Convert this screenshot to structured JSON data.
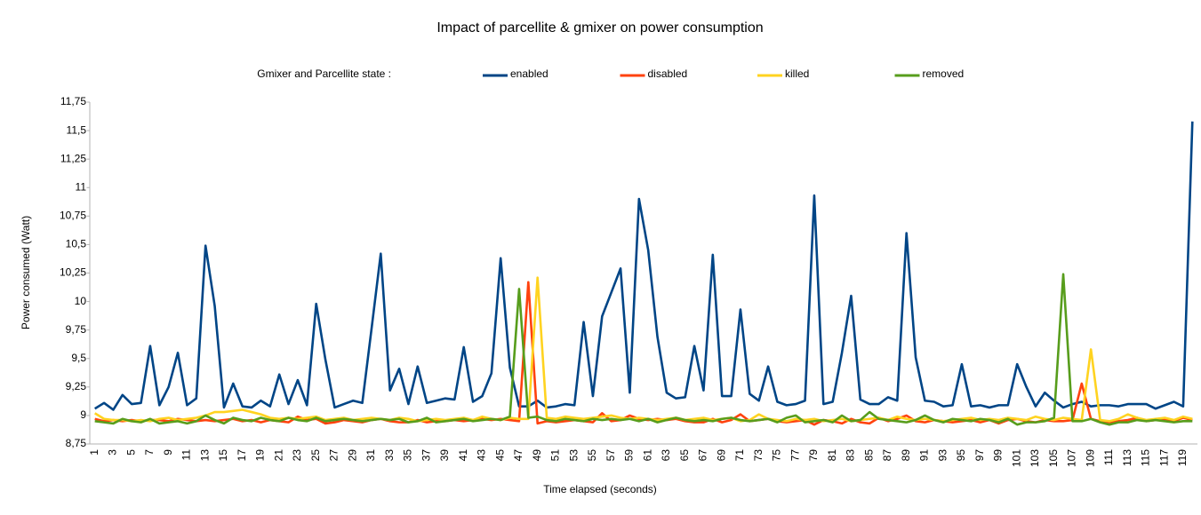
{
  "chart_data": {
    "type": "line",
    "title": "Impact of parcellite & gmixer on power consumption",
    "legend_title": "Gmixer and Parcellite state :",
    "xlabel": "Time elapsed (seconds)",
    "ylabel": "Power consumed (Watt)",
    "legend": "top",
    "grid": false,
    "ylim": [
      8.75,
      11.75
    ],
    "yticks": [
      {
        "value": 8.75,
        "label": "8,75"
      },
      9,
      {
        "value": 9.25,
        "label": "9,25"
      },
      {
        "value": 9.5,
        "label": "9,5"
      },
      {
        "value": 9.75,
        "label": "9,75"
      },
      10,
      {
        "value": 10.25,
        "label": "10,25"
      },
      {
        "value": 10.5,
        "label": "10,5"
      },
      {
        "value": 10.75,
        "label": "10,75"
      },
      11,
      {
        "value": 11.25,
        "label": "11,25"
      },
      {
        "value": 11.5,
        "label": "11,5"
      },
      {
        "value": 11.75,
        "label": "11,75"
      }
    ],
    "categories": [
      "1",
      null,
      "3",
      null,
      "5",
      null,
      "7",
      null,
      "9",
      null,
      "11",
      null,
      "13",
      null,
      "15",
      null,
      "17",
      null,
      "19",
      null,
      "21",
      null,
      "23",
      null,
      "25",
      null,
      "27",
      null,
      "29",
      null,
      "31",
      null,
      "33",
      null,
      "35",
      null,
      "37",
      null,
      "39",
      null,
      "41",
      null,
      "43",
      null,
      "45",
      null,
      "47",
      null,
      "49",
      null,
      "51",
      null,
      "53",
      null,
      "55",
      null,
      "57",
      null,
      "59",
      null,
      "61",
      null,
      "63",
      null,
      "65",
      null,
      "67",
      null,
      "69",
      null,
      "71",
      null,
      "73",
      null,
      "75",
      null,
      "77",
      null,
      "79",
      null,
      "81",
      null,
      "83",
      null,
      "85",
      null,
      "87",
      null,
      "89",
      null,
      "91",
      null,
      "93",
      null,
      "95",
      null,
      "97",
      null,
      "99",
      null,
      "101",
      null,
      "103",
      null,
      "105",
      null,
      "107",
      null,
      "109",
      null,
      "111",
      null,
      "113",
      null,
      "115",
      null,
      "117",
      null,
      "119",
      null
    ],
    "series": [
      {
        "name": "enabled",
        "color": "#004586",
        "values": [
          9.06,
          9.11,
          9.05,
          9.18,
          9.1,
          9.11,
          9.61,
          9.09,
          9.25,
          9.55,
          9.09,
          9.15,
          10.49,
          9.96,
          9.07,
          9.28,
          9.08,
          9.07,
          9.13,
          9.08,
          9.36,
          9.1,
          9.31,
          9.09,
          9.98,
          9.49,
          9.07,
          9.1,
          9.13,
          9.11,
          9.76,
          10.42,
          9.22,
          9.41,
          9.1,
          9.43,
          9.11,
          9.13,
          9.15,
          9.14,
          9.6,
          9.12,
          9.17,
          9.37,
          10.38,
          9.42,
          9.08,
          9.08,
          9.13,
          9.07,
          9.08,
          9.1,
          9.09,
          9.82,
          9.17,
          9.87,
          10.08,
          10.29,
          9.2,
          10.9,
          10.45,
          9.69,
          9.2,
          9.15,
          9.16,
          9.61,
          9.22,
          10.41,
          9.17,
          9.17,
          9.93,
          9.19,
          9.13,
          9.43,
          9.12,
          9.09,
          9.1,
          9.13,
          10.93,
          9.1,
          9.12,
          9.55,
          10.05,
          9.14,
          9.1,
          9.1,
          9.16,
          9.13,
          10.6,
          9.51,
          9.13,
          9.12,
          9.08,
          9.09,
          9.45,
          9.08,
          9.09,
          9.07,
          9.09,
          9.09,
          9.45,
          9.25,
          9.08,
          9.2,
          9.13,
          9.07,
          9.1,
          9.12,
          9.08,
          9.09,
          9.09,
          9.08,
          9.1,
          9.1,
          9.1,
          9.06,
          9.09,
          9.12,
          9.08,
          11.58
        ]
      },
      {
        "name": "disabled",
        "color": "#ff420e",
        "values": [
          8.97,
          8.95,
          8.96,
          8.95,
          8.96,
          8.95,
          8.96,
          8.96,
          8.95,
          8.97,
          8.96,
          8.95,
          8.96,
          8.95,
          8.96,
          8.97,
          8.95,
          8.96,
          8.94,
          8.96,
          8.95,
          8.94,
          8.99,
          8.96,
          8.97,
          8.93,
          8.94,
          8.96,
          8.95,
          8.94,
          8.96,
          8.97,
          8.95,
          8.94,
          8.94,
          8.96,
          8.94,
          8.95,
          8.95,
          8.96,
          8.95,
          8.96,
          8.97,
          8.96,
          8.97,
          8.96,
          8.95,
          10.17,
          8.93,
          8.95,
          8.94,
          8.95,
          8.96,
          8.95,
          8.94,
          9.02,
          8.95,
          8.96,
          9.0,
          8.97,
          8.96,
          8.97,
          8.96,
          8.97,
          8.95,
          8.94,
          8.94,
          8.97,
          8.94,
          8.96,
          9.01,
          8.95,
          8.96,
          8.97,
          8.95,
          8.94,
          8.95,
          8.96,
          8.92,
          8.96,
          8.95,
          8.93,
          8.97,
          8.94,
          8.93,
          8.98,
          8.95,
          8.97,
          9.0,
          8.95,
          8.94,
          8.96,
          8.95,
          8.94,
          8.95,
          8.96,
          8.94,
          8.96,
          8.93,
          8.96,
          8.97,
          8.95,
          8.94,
          8.96,
          8.95,
          8.95,
          8.96,
          9.28,
          8.97,
          8.95,
          8.94,
          8.95,
          8.96,
          8.98,
          8.95,
          8.96,
          8.97,
          8.95,
          8.98,
          8.96
        ]
      },
      {
        "name": "killed",
        "color": "#ffd320",
        "values": [
          9.02,
          8.97,
          8.96,
          8.96,
          8.95,
          8.96,
          8.95,
          8.97,
          8.98,
          8.96,
          8.97,
          8.98,
          9.0,
          9.03,
          9.03,
          9.04,
          9.05,
          9.03,
          9.01,
          8.98,
          8.97,
          8.98,
          8.97,
          8.98,
          8.99,
          8.96,
          8.97,
          8.98,
          8.96,
          8.97,
          8.98,
          8.97,
          8.96,
          8.98,
          8.97,
          8.95,
          8.96,
          8.97,
          8.96,
          8.97,
          8.98,
          8.96,
          8.99,
          8.97,
          8.96,
          8.98,
          8.97,
          8.97,
          10.21,
          8.98,
          8.97,
          8.99,
          8.98,
          8.97,
          8.98,
          8.99,
          9.0,
          8.98,
          8.97,
          8.98,
          8.97,
          8.96,
          8.97,
          8.98,
          8.96,
          8.97,
          8.98,
          8.96,
          8.97,
          8.98,
          8.95,
          8.96,
          9.01,
          8.97,
          8.96,
          8.95,
          8.97,
          8.96,
          8.97,
          8.95,
          8.96,
          8.97,
          8.95,
          8.96,
          8.97,
          8.98,
          8.96,
          8.99,
          8.97,
          8.96,
          8.97,
          8.96,
          8.95,
          8.96,
          8.97,
          8.98,
          8.96,
          8.97,
          8.96,
          8.98,
          8.97,
          8.96,
          8.99,
          8.97,
          8.96,
          8.98,
          8.97,
          8.96,
          9.58,
          8.96,
          8.95,
          8.97,
          9.01,
          8.98,
          8.96,
          8.97,
          8.98,
          8.96,
          8.99,
          8.97
        ]
      },
      {
        "name": "removed",
        "color": "#579d1c",
        "values": [
          8.95,
          8.94,
          8.93,
          8.97,
          8.95,
          8.94,
          8.97,
          8.93,
          8.94,
          8.95,
          8.93,
          8.95,
          9.0,
          8.96,
          8.93,
          8.98,
          8.96,
          8.95,
          8.98,
          8.96,
          8.95,
          8.98,
          8.96,
          8.95,
          8.98,
          8.95,
          8.96,
          8.97,
          8.96,
          8.95,
          8.96,
          8.97,
          8.96,
          8.97,
          8.94,
          8.95,
          8.98,
          8.94,
          8.95,
          8.96,
          8.97,
          8.95,
          8.96,
          8.97,
          8.96,
          8.99,
          10.11,
          8.98,
          8.99,
          8.96,
          8.95,
          8.97,
          8.96,
          8.95,
          8.97,
          8.96,
          8.97,
          8.96,
          8.97,
          8.95,
          8.97,
          8.94,
          8.96,
          8.98,
          8.96,
          8.95,
          8.96,
          8.95,
          8.97,
          8.98,
          8.96,
          8.95,
          8.96,
          8.97,
          8.94,
          8.98,
          9.0,
          8.94,
          8.95,
          8.96,
          8.94,
          9.0,
          8.95,
          8.96,
          9.03,
          8.97,
          8.96,
          8.95,
          8.94,
          8.96,
          9.0,
          8.96,
          8.94,
          8.97,
          8.96,
          8.95,
          8.97,
          8.96,
          8.94,
          8.97,
          8.92,
          8.94,
          8.94,
          8.95,
          8.98,
          10.24,
          8.95,
          8.95,
          8.97,
          8.94,
          8.92,
          8.94,
          8.94,
          8.96,
          8.95,
          8.96,
          8.95,
          8.94,
          8.95,
          8.95
        ]
      }
    ]
  }
}
